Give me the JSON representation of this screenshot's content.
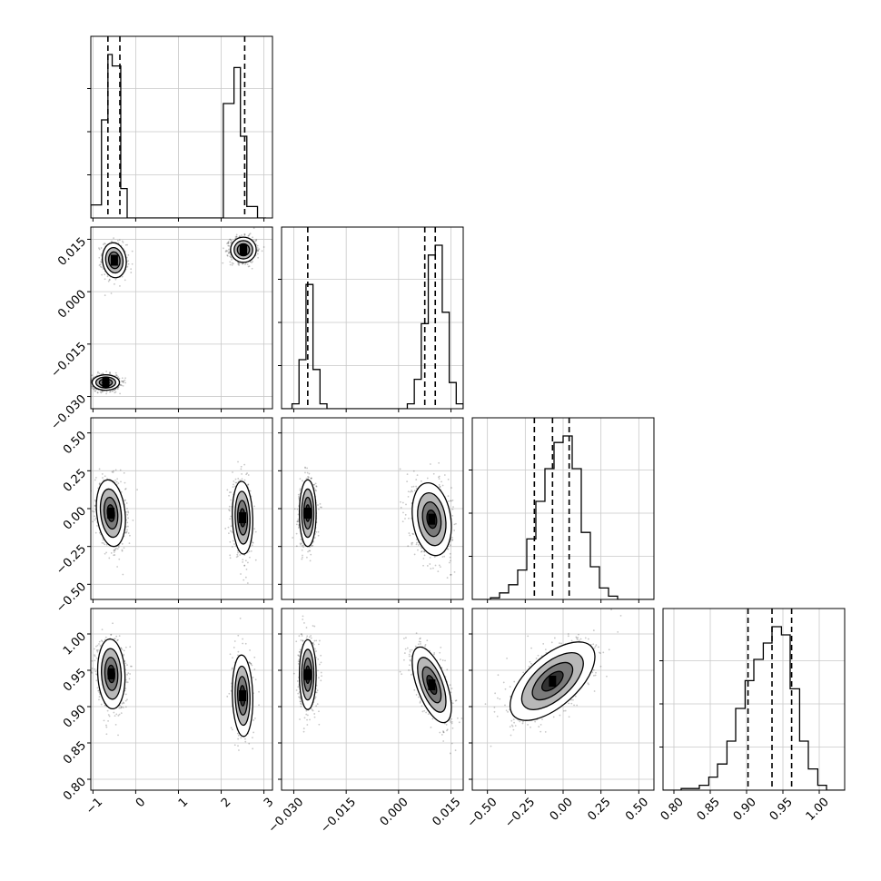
{
  "chart_data": {
    "type": "corner",
    "variables": [
      {
        "label": "",
        "range": [
          -1.05,
          3.2
        ],
        "ticks": [
          -1,
          0,
          1,
          2,
          3
        ],
        "tick_labels": [
          "−1",
          "0",
          "1",
          "2",
          "3"
        ],
        "quantiles": [
          -0.65,
          -0.37,
          2.55
        ],
        "hist_x": [
          -1.05,
          -0.8,
          -0.65,
          -0.55,
          -0.35,
          -0.2,
          -0.05,
          0.2,
          2.05,
          2.3,
          2.45,
          2.6,
          2.85,
          3.05
        ],
        "hist_y": [
          0.08,
          0.6,
          1.0,
          0.93,
          0.18,
          0.0,
          0.0,
          0.0,
          0.7,
          0.92,
          0.5,
          0.07,
          0.0
        ]
      },
      {
        "label": "",
        "range": [
          -0.0335,
          0.0185
        ],
        "ticks": [
          -0.03,
          -0.015,
          0.0,
          0.015
        ],
        "tick_labels": [
          "−0.030",
          "−0.015",
          "0.000",
          "0.015"
        ],
        "quantiles": [
          -0.026,
          0.0075,
          0.0105
        ],
        "hist_x": [
          -0.0335,
          -0.0305,
          -0.0285,
          -0.0265,
          -0.0245,
          -0.0225,
          -0.0205,
          0.0025,
          0.0045,
          0.0065,
          0.0085,
          0.0105,
          0.0125,
          0.0145,
          0.0165,
          0.0185
        ],
        "hist_y": [
          0.0,
          0.03,
          0.3,
          0.76,
          0.24,
          0.03,
          0.0,
          0.03,
          0.18,
          0.52,
          0.94,
          1.0,
          0.59,
          0.16,
          0.03
        ]
      },
      {
        "label": "",
        "range": [
          -0.6,
          0.6
        ],
        "ticks": [
          -0.5,
          -0.25,
          0.0,
          0.25,
          0.5
        ],
        "tick_labels": [
          "−0.50",
          "−0.25",
          "0.00",
          "0.25",
          "0.50"
        ],
        "quantiles": [
          -0.19,
          -0.07,
          0.04
        ],
        "hist_x": [
          -0.6,
          -0.48,
          -0.42,
          -0.36,
          -0.3,
          -0.24,
          -0.18,
          -0.12,
          -0.06,
          0.0,
          0.06,
          0.12,
          0.18,
          0.24,
          0.3,
          0.36,
          0.6
        ],
        "hist_y": [
          0.0,
          0.01,
          0.04,
          0.09,
          0.18,
          0.37,
          0.6,
          0.8,
          0.96,
          1.0,
          0.8,
          0.41,
          0.2,
          0.07,
          0.02,
          0.0
        ]
      },
      {
        "label": "",
        "range": [
          0.785,
          1.035
        ],
        "ticks": [
          0.8,
          0.85,
          0.9,
          0.95,
          1.0
        ],
        "tick_labels": [
          "0.80",
          "0.85",
          "0.90",
          "0.95",
          "1.00"
        ],
        "quantiles": [
          0.902,
          0.935,
          0.962
        ],
        "hist_x": [
          0.785,
          0.81,
          0.835,
          0.848,
          0.86,
          0.873,
          0.885,
          0.898,
          0.91,
          0.923,
          0.935,
          0.948,
          0.96,
          0.973,
          0.985,
          0.998,
          1.01,
          1.035
        ],
        "hist_y": [
          0.0,
          0.01,
          0.03,
          0.08,
          0.16,
          0.3,
          0.5,
          0.67,
          0.8,
          0.9,
          1.0,
          0.95,
          0.62,
          0.3,
          0.13,
          0.03,
          0.0
        ]
      }
    ],
    "blobs": {
      "1-0": [
        {
          "x": -0.5,
          "y": 0.009,
          "sx": 0.14,
          "sy": 0.0025,
          "rho": -0.1,
          "peak": 0.7
        },
        {
          "x": 2.52,
          "y": 0.012,
          "sx": 0.15,
          "sy": 0.0018,
          "rho": 0.0,
          "peak": 0.85
        },
        {
          "x": -0.7,
          "y": -0.026,
          "sx": 0.16,
          "sy": 0.0011,
          "rho": 0.0,
          "peak": 0.85
        }
      ],
      "2-0": [
        {
          "x": -0.58,
          "y": -0.03,
          "sx": 0.17,
          "sy": 0.11,
          "rho": -0.2,
          "peak": 0.85
        },
        {
          "x": 2.5,
          "y": -0.06,
          "sx": 0.12,
          "sy": 0.12,
          "rho": -0.1,
          "peak": 0.6
        }
      ],
      "2-1": [
        {
          "x": -0.026,
          "y": -0.03,
          "sx": 0.0012,
          "sy": 0.11,
          "rho": 0.0,
          "peak": 0.8
        },
        {
          "x": 0.0095,
          "y": -0.07,
          "sx": 0.0028,
          "sy": 0.12,
          "rho": -0.2,
          "peak": 0.85
        }
      ],
      "3-0": [
        {
          "x": -0.57,
          "y": 0.945,
          "sx": 0.16,
          "sy": 0.024,
          "rho": -0.1,
          "peak": 0.9
        },
        {
          "x": 2.5,
          "y": 0.915,
          "sx": 0.12,
          "sy": 0.028,
          "rho": -0.1,
          "peak": 0.6
        }
      ],
      "3-1": [
        {
          "x": -0.026,
          "y": 0.944,
          "sx": 0.0012,
          "sy": 0.024,
          "rho": 0.0,
          "peak": 0.8
        },
        {
          "x": 0.0095,
          "y": 0.93,
          "sx": 0.0028,
          "sy": 0.026,
          "rho": -0.6,
          "peak": 0.85
        }
      ],
      "3-2": [
        {
          "x": -0.07,
          "y": 0.935,
          "sx": 0.14,
          "sy": 0.027,
          "rho": 0.62,
          "peak": 0.95
        }
      ]
    }
  }
}
